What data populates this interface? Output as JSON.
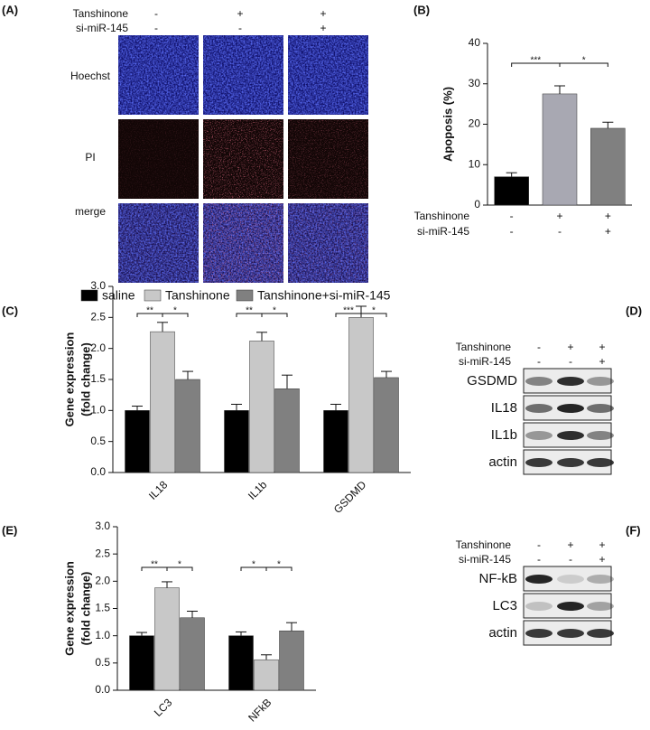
{
  "panel_a": {
    "label": "(A)",
    "conditions": [
      {
        "name": "Tanshinone",
        "marks": [
          "-",
          "+",
          "+"
        ]
      },
      {
        "name": "si-miR-145",
        "marks": [
          "-",
          "-",
          "+"
        ]
      }
    ],
    "rows": [
      "Hoechst",
      "PI",
      "merge"
    ]
  },
  "chart_data": [
    {
      "type": "bar",
      "panel": "(B)",
      "ylabel": "Apoposis (%)",
      "categories": [
        null,
        null,
        null
      ],
      "values": [
        7,
        27.5,
        19
      ],
      "errors": [
        1,
        2,
        1.5
      ],
      "colors": [
        "#000000",
        "#a8a8b2",
        "#808080"
      ],
      "conditions": [
        {
          "name": "Tanshinone",
          "marks": [
            "-",
            "+",
            "+"
          ]
        },
        {
          "name": "si-miR-145",
          "marks": [
            "-",
            "-",
            "+"
          ]
        }
      ],
      "ylim": [
        0,
        40
      ],
      "yticks": [
        0,
        10,
        20,
        30,
        40
      ],
      "grid": false,
      "significance": [
        {
          "groups": [
            0,
            1
          ],
          "label": "***"
        },
        {
          "groups": [
            1,
            2
          ],
          "label": "*"
        }
      ]
    },
    {
      "type": "grouped_bar",
      "panel": "(C)",
      "ylabel": [
        "Gene expression",
        "(fold change)"
      ],
      "categories": [
        "IL18",
        "IL1b",
        "GSDMD"
      ],
      "series": [
        {
          "name": "saline",
          "color": "#000000",
          "values": [
            1.0,
            1.0,
            1.0
          ],
          "errors": [
            0.07,
            0.1,
            0.1
          ]
        },
        {
          "name": "Tanshinone",
          "color": "#c8c8c8",
          "values": [
            2.27,
            2.12,
            2.5
          ],
          "errors": [
            0.15,
            0.14,
            0.18
          ]
        },
        {
          "name": "Tanshinone+si-miR-145",
          "color": "#808080",
          "values": [
            1.5,
            1.35,
            1.53
          ],
          "errors": [
            0.13,
            0.22,
            0.1
          ]
        }
      ],
      "ylim": [
        0,
        3
      ],
      "yticks": [
        {
          "value": 0,
          "label": "0.0"
        },
        {
          "value": 0.5,
          "label": "0.5"
        },
        {
          "value": 1,
          "label": "1.0"
        },
        {
          "value": 1.5,
          "label": "1.5"
        },
        {
          "value": 2,
          "label": "2.0"
        },
        {
          "value": 2.5,
          "label": "2.5"
        },
        {
          "value": 3,
          "label": "3.0"
        }
      ],
      "grid": false,
      "significance": [
        {
          "category": 0,
          "series": [
            0,
            1
          ],
          "label": "**"
        },
        {
          "category": 0,
          "series": [
            1,
            2
          ],
          "label": "*"
        },
        {
          "category": 1,
          "series": [
            0,
            1
          ],
          "label": "**"
        },
        {
          "category": 1,
          "series": [
            1,
            2
          ],
          "label": "*"
        },
        {
          "category": 2,
          "series": [
            0,
            1
          ],
          "label": "***"
        },
        {
          "category": 2,
          "series": [
            1,
            2
          ],
          "label": "*"
        }
      ]
    },
    {
      "type": "grouped_bar",
      "panel": "(E)",
      "ylabel": [
        "Gene expression",
        "(fold change)"
      ],
      "categories": [
        "LC3",
        "NFkB"
      ],
      "series": [
        {
          "color": "#000000",
          "values": [
            1.0,
            1.0
          ],
          "errors": [
            0.06,
            0.07
          ]
        },
        {
          "color": "#c8c8c8",
          "values": [
            1.88,
            0.56
          ],
          "errors": [
            0.11,
            0.09
          ]
        },
        {
          "color": "#808080",
          "values": [
            1.33,
            1.09
          ],
          "errors": [
            0.12,
            0.15
          ]
        }
      ],
      "ylim": [
        0,
        3
      ],
      "yticks": [
        {
          "value": 0,
          "label": "0.0"
        },
        {
          "value": 0.5,
          "label": "0.5"
        },
        {
          "value": 1,
          "label": "1.0"
        },
        {
          "value": 1.5,
          "label": "1.5"
        },
        {
          "value": 2,
          "label": "2.0"
        },
        {
          "value": 2.5,
          "label": "2.5"
        },
        {
          "value": 3,
          "label": "3.0"
        }
      ],
      "grid": false,
      "significance": [
        {
          "category": 0,
          "series": [
            0,
            1
          ],
          "label": "**"
        },
        {
          "category": 0,
          "series": [
            1,
            2
          ],
          "label": "*"
        },
        {
          "category": 1,
          "series": [
            0,
            1
          ],
          "label": "*"
        },
        {
          "category": 1,
          "series": [
            1,
            2
          ],
          "label": "*"
        }
      ]
    }
  ],
  "panel_d": {
    "label": "(D)",
    "conditions": [
      {
        "name": "Tanshinone",
        "marks": [
          "-",
          "+",
          "+"
        ]
      },
      {
        "name": "si-miR-145",
        "marks": [
          "-",
          "-",
          "+"
        ]
      }
    ],
    "bands": [
      "GSDMD",
      "IL18",
      "IL1b",
      "actin"
    ]
  },
  "panel_f": {
    "label": "(F)",
    "conditions": [
      {
        "name": "Tanshinone",
        "marks": [
          "-",
          "+",
          "+"
        ]
      },
      {
        "name": "si-miR-145",
        "marks": [
          "-",
          "-",
          "+"
        ]
      }
    ],
    "bands": [
      "NF-kB",
      "LC3",
      "actin"
    ]
  }
}
